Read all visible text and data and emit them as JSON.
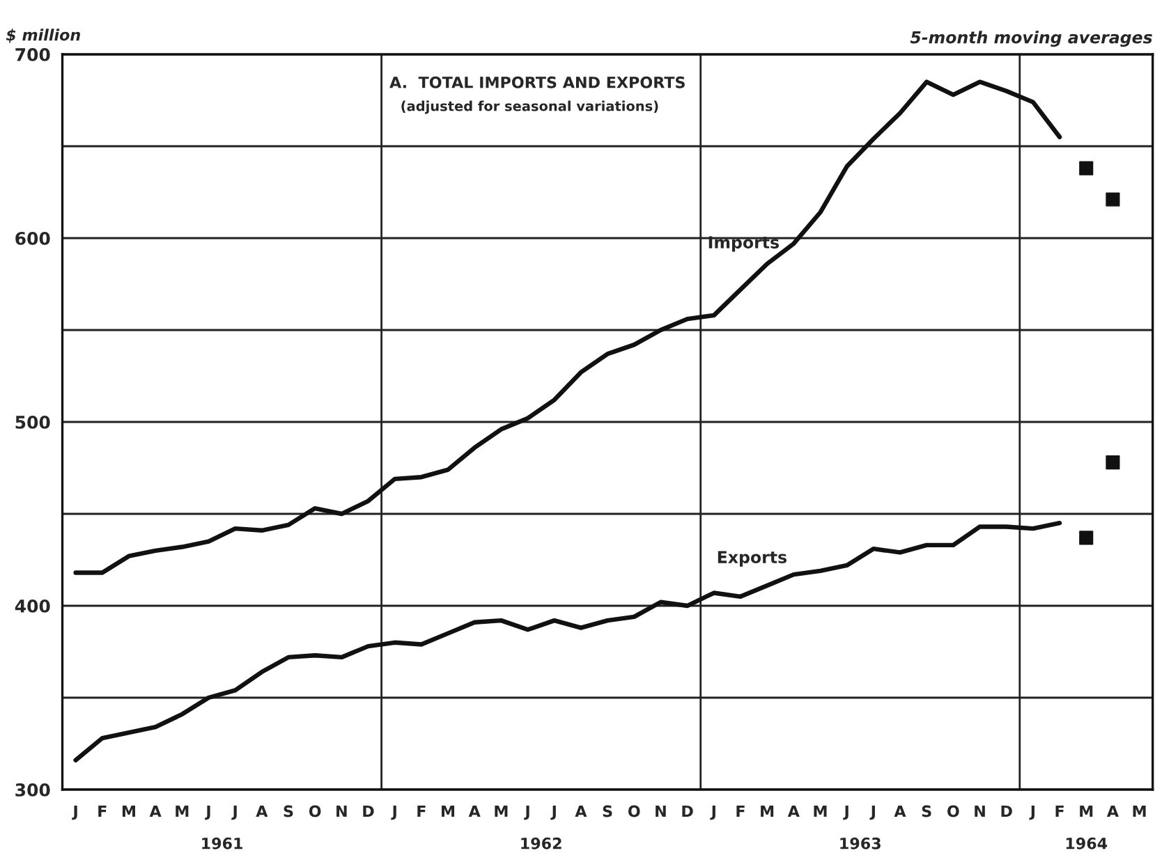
{
  "chart_data": {
    "type": "line",
    "title": "A.  TOTAL IMPORTS AND EXPORTS",
    "subtitle": "(adjusted for seasonal variations)",
    "ylabel": "$ million",
    "annotations": [
      "5-month moving averages",
      "1961",
      "1962",
      "1963",
      "1964"
    ],
    "categories": [
      "J",
      "F",
      "M",
      "A",
      "M",
      "J",
      "J",
      "A",
      "S",
      "O",
      "N",
      "D",
      "J",
      "F",
      "M",
      "A",
      "M",
      "J",
      "J",
      "A",
      "S",
      "O",
      "N",
      "D",
      "J",
      "F",
      "M",
      "A",
      "M",
      "J",
      "J",
      "A",
      "S",
      "O",
      "N",
      "D",
      "J",
      "F",
      "M",
      "A",
      "M"
    ],
    "series": [
      {
        "name": "Imports",
        "color": "#111111",
        "values": [
          418,
          418,
          427,
          430,
          432,
          435,
          442,
          441,
          444,
          453,
          450,
          457,
          469,
          470,
          474,
          486,
          496,
          502,
          512,
          527,
          537,
          542,
          550,
          556,
          558,
          572,
          586,
          597,
          614,
          639,
          654,
          668,
          685,
          678,
          685,
          680,
          674,
          655,
          null,
          null,
          null
        ]
      },
      {
        "name": "Exports",
        "color": "#111111",
        "values": [
          316,
          328,
          331,
          334,
          341,
          350,
          354,
          364,
          372,
          373,
          372,
          378,
          380,
          379,
          385,
          391,
          392,
          387,
          392,
          388,
          392,
          394,
          402,
          400,
          407,
          405,
          411,
          417,
          419,
          422,
          431,
          429,
          433,
          433,
          443,
          443,
          442,
          445,
          null,
          null,
          null
        ]
      },
      {
        "type": "scatter",
        "color": "#111111",
        "marker": "square",
        "values": [
          null,
          null,
          null,
          null,
          null,
          null,
          null,
          null,
          null,
          null,
          null,
          null,
          null,
          null,
          null,
          null,
          null,
          null,
          null,
          null,
          null,
          null,
          null,
          null,
          null,
          null,
          null,
          null,
          null,
          null,
          null,
          null,
          null,
          null,
          null,
          null,
          null,
          null,
          638,
          621,
          null
        ]
      },
      {
        "type": "scatter",
        "color": "#111111",
        "marker": "square",
        "values": [
          null,
          null,
          null,
          null,
          null,
          null,
          null,
          null,
          null,
          null,
          null,
          null,
          null,
          null,
          null,
          null,
          null,
          null,
          null,
          null,
          null,
          null,
          null,
          null,
          null,
          null,
          null,
          null,
          null,
          null,
          null,
          null,
          null,
          null,
          null,
          null,
          null,
          null,
          437,
          478,
          null
        ]
      }
    ],
    "ylim": [
      300,
      700
    ],
    "yticks": [
      300,
      {
        "value": 350,
        "label": null
      },
      400,
      {
        "value": 450,
        "label": null
      },
      500,
      {
        "value": 550,
        "label": null
      },
      600,
      {
        "value": 650,
        "label": null
      },
      700
    ],
    "grid": "y",
    "line_style": "solid",
    "legend": false
  }
}
